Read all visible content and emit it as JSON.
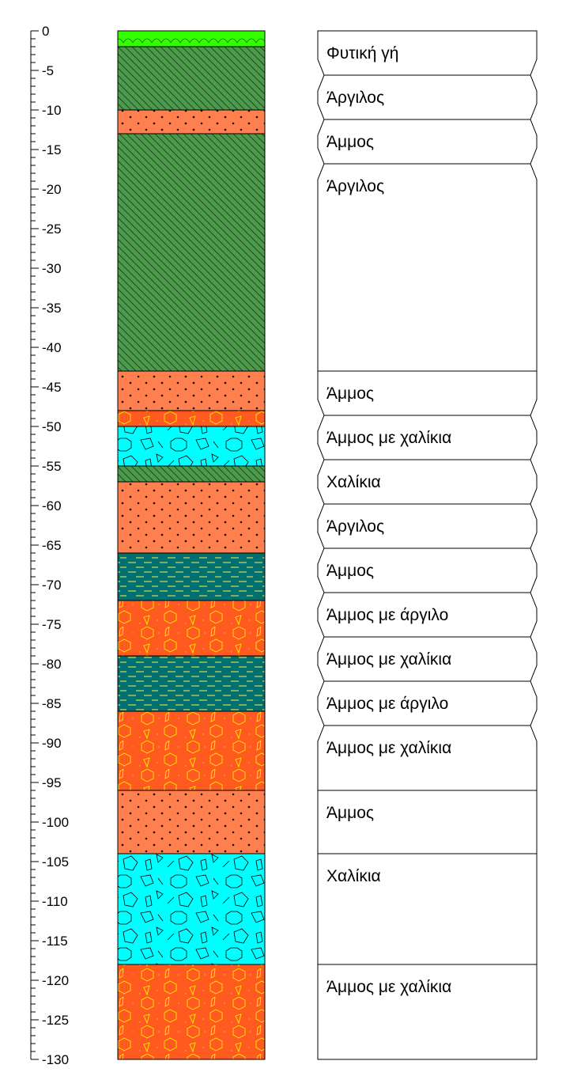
{
  "scale": {
    "depth_min": -130,
    "depth_max": 0,
    "major_step": 5,
    "minor_step": 1,
    "labels": [
      "0",
      "-5",
      "-10",
      "-15",
      "-20",
      "-25",
      "-30",
      "-35",
      "-40",
      "-45",
      "-50",
      "-55",
      "-60",
      "-65",
      "-70",
      "-75",
      "-80",
      "-85",
      "-90",
      "-95",
      "-100",
      "-105",
      "-110",
      "-115",
      "-120",
      "-125",
      "-130"
    ]
  },
  "layers": [
    {
      "top": 0,
      "bottom": -2,
      "pattern": "topsoil",
      "color": "#33ff00"
    },
    {
      "top": -2,
      "bottom": -10,
      "pattern": "clay",
      "color": "#4c9a4c"
    },
    {
      "top": -10,
      "bottom": -13,
      "pattern": "sand",
      "color": "#ff7f4f"
    },
    {
      "top": -13,
      "bottom": -43,
      "pattern": "clay",
      "color": "#4c9a4c"
    },
    {
      "top": -43,
      "bottom": -48,
      "pattern": "sand",
      "color": "#ff7f4f"
    },
    {
      "top": -48,
      "bottom": -50,
      "pattern": "sand-gravel",
      "color": "#ff5a1f"
    },
    {
      "top": -50,
      "bottom": -55,
      "pattern": "gravel",
      "color": "#00ffff"
    },
    {
      "top": -55,
      "bottom": -57,
      "pattern": "clay",
      "color": "#4c9a4c"
    },
    {
      "top": -57,
      "bottom": -66,
      "pattern": "sand",
      "color": "#ff7f4f"
    },
    {
      "top": -66,
      "bottom": -72,
      "pattern": "clayey-sand",
      "color": "#007070"
    },
    {
      "top": -72,
      "bottom": -79,
      "pattern": "sand-gravel",
      "color": "#ff5a1f"
    },
    {
      "top": -79,
      "bottom": -86,
      "pattern": "clayey-sand",
      "color": "#007070"
    },
    {
      "top": -86,
      "bottom": -96,
      "pattern": "sand-gravel",
      "color": "#ff5a1f"
    },
    {
      "top": -96,
      "bottom": -104,
      "pattern": "sand",
      "color": "#ff7f4f"
    },
    {
      "top": -104,
      "bottom": -118,
      "pattern": "gravel",
      "color": "#00ffff"
    },
    {
      "top": -118,
      "bottom": -130,
      "pattern": "sand-gravel",
      "color": "#ff5a1f"
    }
  ],
  "descriptions": [
    {
      "label": "Φυτική γή",
      "box_top": 0,
      "box_bottom": -5.6
    },
    {
      "label": "Άργιλος",
      "box_top": -5.6,
      "box_bottom": -11.2
    },
    {
      "label": "Άμμος",
      "box_top": -11.2,
      "box_bottom": -16.8
    },
    {
      "label": "Άργιλος",
      "box_top": -16.8,
      "box_bottom": -43
    },
    {
      "label": "Άμμος",
      "box_top": -43,
      "box_bottom": -48.6
    },
    {
      "label": "Άμμος με χαλίκια",
      "box_top": -48.6,
      "box_bottom": -54.2
    },
    {
      "label": "Χαλίκια",
      "box_top": -54.2,
      "box_bottom": -59.8
    },
    {
      "label": "Άργιλος",
      "box_top": -59.8,
      "box_bottom": -65.4
    },
    {
      "label": "Άμμος",
      "box_top": -65.4,
      "box_bottom": -71
    },
    {
      "label": "Άμμος με άργιλο",
      "box_top": -71,
      "box_bottom": -76.6
    },
    {
      "label": "Άμμος με χαλίκια",
      "box_top": -76.6,
      "box_bottom": -82.2
    },
    {
      "label": "Άμμος με άργιλο",
      "box_top": -82.2,
      "box_bottom": -87.8
    },
    {
      "label": "Άμμος με χαλίκια",
      "box_top": -87.8,
      "box_bottom": -96
    },
    {
      "label": "Άμμος",
      "box_top": -96,
      "box_bottom": -104
    },
    {
      "label": "Χαλίκια",
      "box_top": -104,
      "box_bottom": -118
    },
    {
      "label": "Άμμος με χαλίκια",
      "box_top": -118,
      "box_bottom": -130
    }
  ]
}
